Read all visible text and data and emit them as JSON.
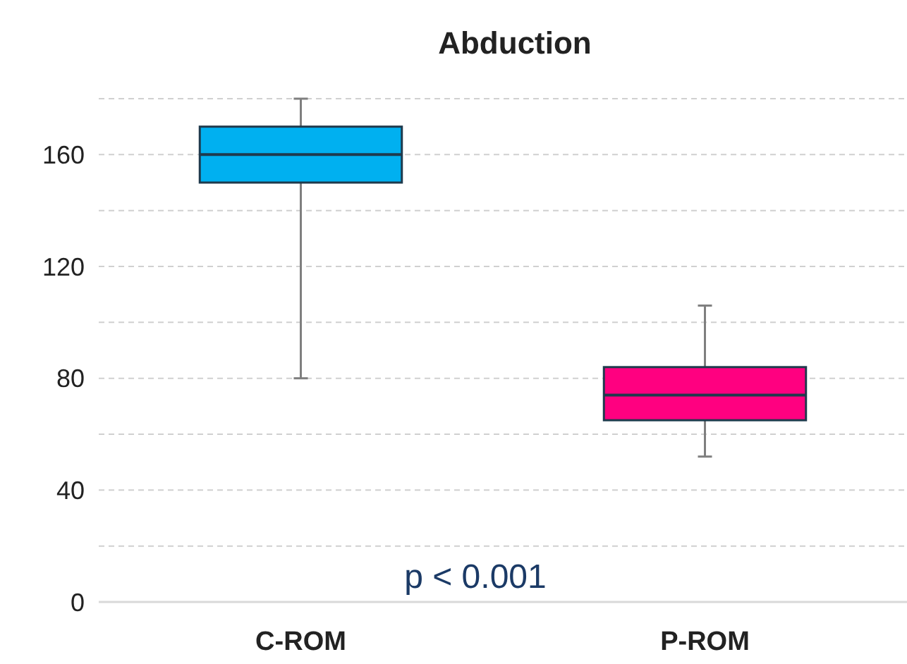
{
  "chart_data": {
    "type": "box",
    "title": "Abduction",
    "categories": [
      "C-ROM",
      "P-ROM"
    ],
    "boxes": [
      {
        "low": 80,
        "q1": 150,
        "median": 160,
        "q3": 170,
        "high": 180
      },
      {
        "low": 52,
        "q1": 65,
        "median": 74,
        "q3": 84,
        "high": 106
      }
    ],
    "colors": [
      "#00b0f0",
      "#ff0080"
    ],
    "ylim": [
      0,
      180
    ],
    "yticks": [
      0,
      {
        "value": 20,
        "label": null
      },
      40,
      {
        "value": 60,
        "label": null
      },
      80,
      {
        "value": 100,
        "label": null
      },
      120,
      {
        "value": 140,
        "label": null
      },
      160,
      {
        "value": 180,
        "label": null
      }
    ],
    "grid": "y",
    "annotations": [
      "p < 0.001"
    ]
  }
}
